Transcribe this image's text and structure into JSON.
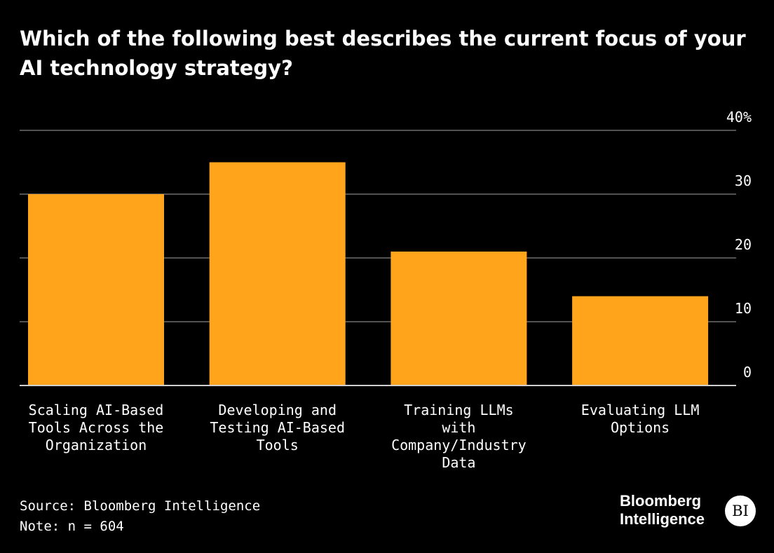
{
  "chart_data": {
    "type": "bar",
    "title": "Which of the following best describes the current focus of your AI technology strategy?",
    "categories": [
      [
        "Scaling AI-Based",
        "Tools Across the",
        "Organization"
      ],
      [
        "Developing and",
        "Testing AI-Based",
        "Tools"
      ],
      [
        "Training LLMs",
        "with",
        "Company/Industry",
        "Data"
      ],
      [
        "Evaluating LLM",
        "Options"
      ]
    ],
    "values": [
      30,
      35,
      21,
      14
    ],
    "ylim": [
      0,
      40
    ],
    "yticks": [
      0,
      10,
      20,
      30,
      40
    ],
    "ytick_labels": [
      "0",
      "10",
      "20",
      "30",
      "40%"
    ],
    "ylabel": "",
    "xlabel": "",
    "grid": true,
    "bar_color": "#FFA41B"
  },
  "footer": {
    "source": "Source: Bloomberg Intelligence",
    "note": "Note: n = 604"
  },
  "logo": {
    "line1": "Bloomberg",
    "line2": "Intelligence",
    "badge": "BI"
  }
}
